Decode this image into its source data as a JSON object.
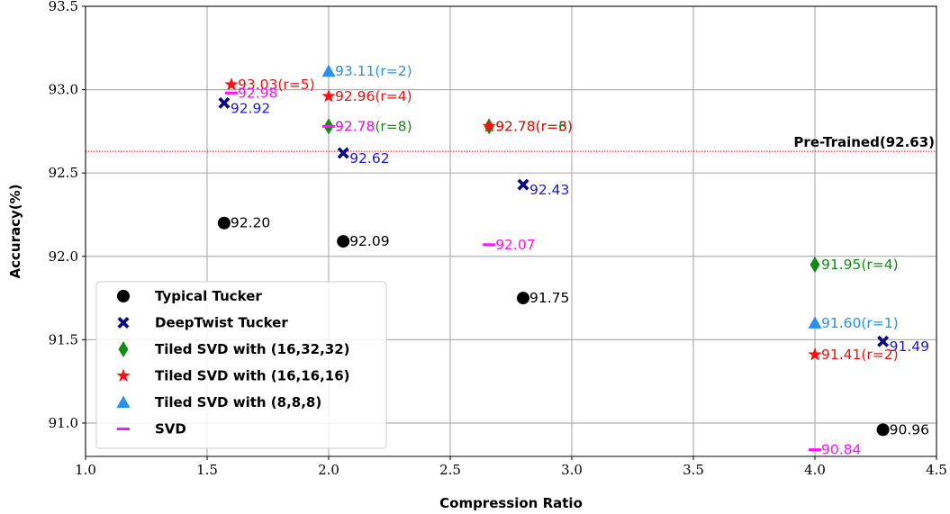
{
  "chart_data": {
    "type": "scatter",
    "xlabel": "Compression Ratio",
    "ylabel": "Accuracy(%)",
    "xlim": [
      1.0,
      4.5
    ],
    "ylim": [
      90.8,
      93.5
    ],
    "xticks": [
      1.0,
      1.5,
      2.0,
      2.5,
      3.0,
      3.5,
      4.0,
      4.5
    ],
    "yticks": [
      91.0,
      91.5,
      92.0,
      92.5,
      93.0,
      93.5
    ],
    "xtick_labels": [
      "1.0",
      "1.5",
      "2.0",
      "2.5",
      "3.0",
      "3.5",
      "4.0",
      "4.5"
    ],
    "ytick_labels": [
      "91.0",
      "91.5",
      "92.0",
      "92.5",
      "93.0",
      "93.5"
    ],
    "grid": true,
    "legend_position": "lower-left",
    "reference_line": {
      "y": 92.63,
      "label": "Pre-Trained(92.63)",
      "color": "#ff0000"
    },
    "series": [
      {
        "name": "Typical Tucker",
        "marker": "circle",
        "color": "#000000",
        "label_color": "#000000",
        "points": [
          {
            "x": 1.57,
            "y": 92.2,
            "label": "92.20"
          },
          {
            "x": 2.06,
            "y": 92.09,
            "label": "92.09"
          },
          {
            "x": 2.8,
            "y": 91.75,
            "label": "91.75"
          },
          {
            "x": 4.28,
            "y": 90.96,
            "label": "90.96"
          }
        ]
      },
      {
        "name": "DeepTwist Tucker",
        "marker": "x",
        "color": "#0a0a80",
        "label_color": "#1a1adc",
        "points": [
          {
            "x": 1.57,
            "y": 92.92,
            "label": "92.92"
          },
          {
            "x": 2.06,
            "y": 92.62,
            "label": "92.62"
          },
          {
            "x": 2.8,
            "y": 92.43,
            "label": "92.43"
          },
          {
            "x": 4.28,
            "y": 91.49,
            "label": "91.49"
          }
        ]
      },
      {
        "name": "Tiled SVD with (16,32,32)",
        "marker": "diamond",
        "color": "#138a13",
        "label_color": "#138a13",
        "points": [
          {
            "x": 2.0,
            "y": 92.78,
            "label": "92.78(r=8)"
          },
          {
            "x": 2.66,
            "y": 92.78,
            "label": "92.78(r=6)"
          },
          {
            "x": 4.0,
            "y": 91.95,
            "label": "91.95(r=4)"
          }
        ]
      },
      {
        "name": "Tiled SVD with (16,16,16)",
        "marker": "star",
        "color": "#ff1010",
        "label_color": "#ee1111",
        "points": [
          {
            "x": 1.6,
            "y": 93.03,
            "label": "93.03(r=5)"
          },
          {
            "x": 2.0,
            "y": 92.96,
            "label": "92.96(r=4)"
          },
          {
            "x": 2.66,
            "y": 92.78,
            "label": "92.78(r=3)"
          },
          {
            "x": 4.0,
            "y": 91.41,
            "label": "91.41(r=2)"
          }
        ]
      },
      {
        "name": "Tiled SVD with (8,8,8)",
        "marker": "triangle",
        "color": "#2a8ff0",
        "label_color": "#2a8ff0",
        "points": [
          {
            "x": 2.0,
            "y": 93.11,
            "label": "93.11(r=2)"
          },
          {
            "x": 4.0,
            "y": 91.6,
            "label": "91.60(r=1)"
          }
        ]
      },
      {
        "name": "SVD",
        "marker": "hline",
        "color": "#ff10ff",
        "label_color": "#ff10ff",
        "points": [
          {
            "x": 1.6,
            "y": 92.98,
            "label": "92.98"
          },
          {
            "x": 2.0,
            "y": 92.78,
            "label": "92.78"
          },
          {
            "x": 2.66,
            "y": 92.07,
            "label": "92.07"
          },
          {
            "x": 4.0,
            "y": 90.84,
            "label": "90.84"
          }
        ]
      }
    ]
  }
}
